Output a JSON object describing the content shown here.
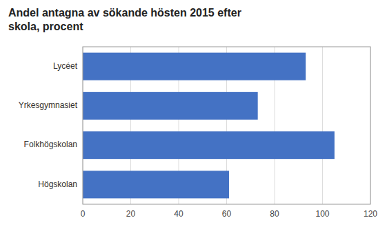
{
  "chart_data": {
    "type": "bar",
    "orientation": "horizontal",
    "title": "Andel antagna av sökande hösten 2015 efter\nskola, procent",
    "categories": [
      "Lycéet",
      "Yrkesgymnasiet",
      "Folkhögskolan",
      "Högskolan"
    ],
    "values": [
      93,
      73,
      105,
      61
    ],
    "color": "#4472C4",
    "xlim": [
      0,
      120
    ],
    "xticks": [
      0,
      20,
      40,
      60,
      80,
      100,
      120
    ],
    "grid": true
  }
}
